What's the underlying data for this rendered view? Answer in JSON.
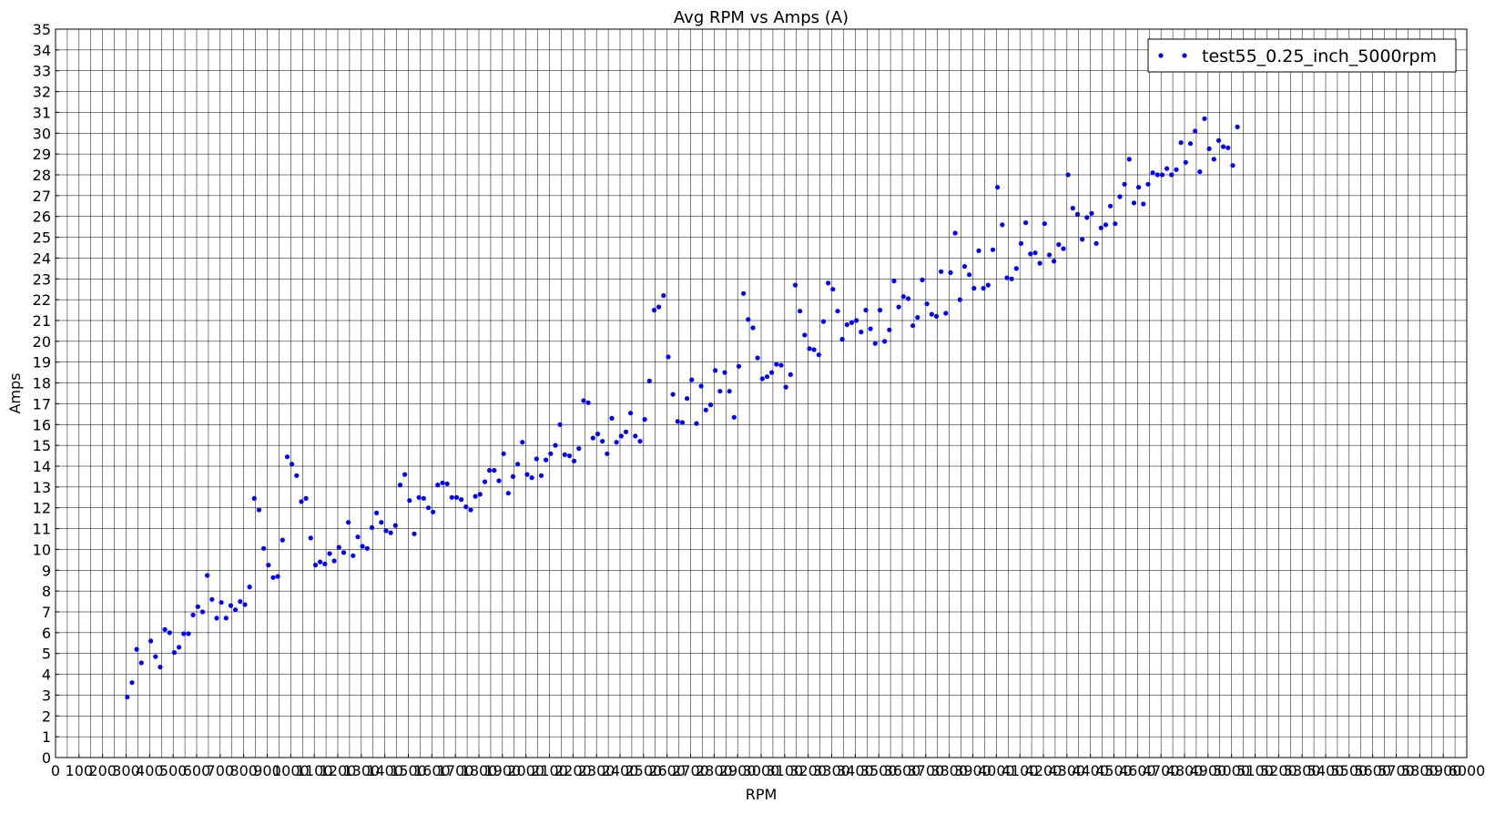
{
  "chart_data": {
    "type": "scatter",
    "title": "Avg RPM vs Amps (A)",
    "xlabel": "RPM",
    "ylabel": "Amps",
    "xlim": [
      0,
      6000
    ],
    "ylim": [
      0,
      35
    ],
    "x_ticks": [
      0,
      100,
      200,
      300,
      400,
      500,
      600,
      700,
      800,
      900,
      1000,
      1100,
      1200,
      1300,
      1400,
      1500,
      1600,
      1700,
      1800,
      1900,
      2000,
      2100,
      2200,
      2300,
      2400,
      2500,
      2600,
      2700,
      2800,
      2900,
      3000,
      3100,
      3200,
      3300,
      3400,
      3500,
      3600,
      3700,
      3800,
      3900,
      4000,
      4100,
      4200,
      4300,
      4400,
      4500,
      4600,
      4700,
      4800,
      4900,
      5000,
      5100,
      5200,
      5300,
      5400,
      5500,
      5600,
      5700,
      5800,
      5900,
      6000
    ],
    "y_ticks": [
      0,
      1,
      2,
      3,
      4,
      5,
      6,
      7,
      8,
      9,
      10,
      11,
      12,
      13,
      14,
      15,
      16,
      17,
      18,
      19,
      20,
      21,
      22,
      23,
      24,
      25,
      26,
      27,
      28,
      29,
      30,
      31,
      32,
      33,
      34,
      35
    ],
    "grid": true,
    "x_minor_step": 50,
    "legend": {
      "position": "top-right",
      "entries": [
        "test55_0.25_inch_5000rpm"
      ]
    },
    "marker_color": "#0000ff",
    "series": [
      {
        "name": "test55_0.25_inch_5000rpm",
        "points": [
          [
            305,
            2.9
          ],
          [
            325,
            3.6
          ],
          [
            345,
            5.2
          ],
          [
            365,
            4.55
          ],
          [
            405,
            5.6
          ],
          [
            425,
            4.85
          ],
          [
            445,
            4.35
          ],
          [
            465,
            6.15
          ],
          [
            485,
            6.0
          ],
          [
            505,
            5.05
          ],
          [
            525,
            5.3
          ],
          [
            545,
            5.95
          ],
          [
            565,
            5.95
          ],
          [
            585,
            6.85
          ],
          [
            605,
            7.25
          ],
          [
            625,
            7.0
          ],
          [
            645,
            8.75
          ],
          [
            665,
            7.6
          ],
          [
            685,
            6.7
          ],
          [
            705,
            7.45
          ],
          [
            725,
            6.7
          ],
          [
            745,
            7.3
          ],
          [
            765,
            7.1
          ],
          [
            785,
            7.5
          ],
          [
            805,
            7.35
          ],
          [
            825,
            8.2
          ],
          [
            845,
            12.45
          ],
          [
            865,
            11.9
          ],
          [
            885,
            10.05
          ],
          [
            905,
            9.25
          ],
          [
            925,
            8.65
          ],
          [
            945,
            8.7
          ],
          [
            965,
            10.45
          ],
          [
            985,
            14.45
          ],
          [
            1005,
            14.1
          ],
          [
            1025,
            13.55
          ],
          [
            1045,
            12.3
          ],
          [
            1065,
            12.45
          ],
          [
            1085,
            10.55
          ],
          [
            1105,
            9.25
          ],
          [
            1125,
            9.4
          ],
          [
            1145,
            9.3
          ],
          [
            1165,
            9.8
          ],
          [
            1185,
            9.45
          ],
          [
            1205,
            10.1
          ],
          [
            1225,
            9.85
          ],
          [
            1245,
            11.3
          ],
          [
            1265,
            9.7
          ],
          [
            1285,
            10.6
          ],
          [
            1305,
            10.15
          ],
          [
            1325,
            10.05
          ],
          [
            1345,
            11.05
          ],
          [
            1365,
            11.75
          ],
          [
            1385,
            11.3
          ],
          [
            1405,
            10.9
          ],
          [
            1425,
            10.8
          ],
          [
            1445,
            11.15
          ],
          [
            1465,
            13.1
          ],
          [
            1485,
            13.6
          ],
          [
            1505,
            12.35
          ],
          [
            1525,
            10.75
          ],
          [
            1545,
            12.5
          ],
          [
            1565,
            12.45
          ],
          [
            1585,
            12.0
          ],
          [
            1605,
            11.8
          ],
          [
            1625,
            13.1
          ],
          [
            1645,
            13.2
          ],
          [
            1665,
            13.15
          ],
          [
            1685,
            12.5
          ],
          [
            1705,
            12.5
          ],
          [
            1725,
            12.4
          ],
          [
            1745,
            12.05
          ],
          [
            1765,
            11.9
          ],
          [
            1785,
            12.55
          ],
          [
            1805,
            12.65
          ],
          [
            1825,
            13.25
          ],
          [
            1845,
            13.8
          ],
          [
            1865,
            13.8
          ],
          [
            1885,
            13.3
          ],
          [
            1905,
            14.6
          ],
          [
            1925,
            12.7
          ],
          [
            1945,
            13.5
          ],
          [
            1965,
            14.1
          ],
          [
            1985,
            15.15
          ],
          [
            2005,
            13.6
          ],
          [
            2025,
            13.45
          ],
          [
            2045,
            14.35
          ],
          [
            2065,
            13.55
          ],
          [
            2085,
            14.3
          ],
          [
            2105,
            14.6
          ],
          [
            2125,
            15.0
          ],
          [
            2145,
            16.0
          ],
          [
            2165,
            14.55
          ],
          [
            2185,
            14.5
          ],
          [
            2205,
            14.25
          ],
          [
            2225,
            14.85
          ],
          [
            2245,
            17.15
          ],
          [
            2265,
            17.05
          ],
          [
            2285,
            15.35
          ],
          [
            2305,
            15.55
          ],
          [
            2325,
            15.2
          ],
          [
            2345,
            14.6
          ],
          [
            2365,
            16.3
          ],
          [
            2385,
            15.15
          ],
          [
            2405,
            15.45
          ],
          [
            2425,
            15.65
          ],
          [
            2445,
            16.55
          ],
          [
            2465,
            15.45
          ],
          [
            2485,
            15.2
          ],
          [
            2505,
            16.25
          ],
          [
            2525,
            18.1
          ],
          [
            2545,
            21.5
          ],
          [
            2565,
            21.65
          ],
          [
            2585,
            22.2
          ],
          [
            2605,
            19.25
          ],
          [
            2625,
            17.45
          ],
          [
            2645,
            16.15
          ],
          [
            2665,
            16.1
          ],
          [
            2685,
            17.25
          ],
          [
            2705,
            18.15
          ],
          [
            2725,
            16.05
          ],
          [
            2745,
            17.85
          ],
          [
            2765,
            16.7
          ],
          [
            2785,
            16.95
          ],
          [
            2805,
            18.6
          ],
          [
            2825,
            17.6
          ],
          [
            2845,
            18.5
          ],
          [
            2865,
            17.6
          ],
          [
            2885,
            16.35
          ],
          [
            2905,
            18.8
          ],
          [
            2925,
            22.3
          ],
          [
            2945,
            21.05
          ],
          [
            2965,
            20.65
          ],
          [
            2985,
            19.2
          ],
          [
            3005,
            18.2
          ],
          [
            3025,
            18.3
          ],
          [
            3045,
            18.5
          ],
          [
            3065,
            18.9
          ],
          [
            3085,
            18.85
          ],
          [
            3105,
            17.8
          ],
          [
            3125,
            18.4
          ],
          [
            3145,
            22.7
          ],
          [
            3165,
            21.45
          ],
          [
            3185,
            20.3
          ],
          [
            3205,
            19.65
          ],
          [
            3225,
            19.6
          ],
          [
            3245,
            19.35
          ],
          [
            3265,
            20.95
          ],
          [
            3285,
            22.8
          ],
          [
            3305,
            22.5
          ],
          [
            3325,
            21.45
          ],
          [
            3345,
            20.1
          ],
          [
            3365,
            20.8
          ],
          [
            3385,
            20.9
          ],
          [
            3405,
            21.0
          ],
          [
            3425,
            20.45
          ],
          [
            3445,
            21.5
          ],
          [
            3465,
            20.6
          ],
          [
            3485,
            19.9
          ],
          [
            3505,
            21.5
          ],
          [
            3525,
            20.0
          ],
          [
            3545,
            20.55
          ],
          [
            3565,
            22.9
          ],
          [
            3585,
            21.65
          ],
          [
            3605,
            22.15
          ],
          [
            3625,
            22.05
          ],
          [
            3645,
            20.75
          ],
          [
            3665,
            21.15
          ],
          [
            3685,
            22.95
          ],
          [
            3705,
            21.8
          ],
          [
            3725,
            21.3
          ],
          [
            3745,
            21.2
          ],
          [
            3765,
            23.35
          ],
          [
            3785,
            21.35
          ],
          [
            3805,
            23.3
          ],
          [
            3825,
            25.2
          ],
          [
            3845,
            22.0
          ],
          [
            3865,
            23.6
          ],
          [
            3885,
            23.2
          ],
          [
            3905,
            22.55
          ],
          [
            3925,
            24.35
          ],
          [
            3945,
            22.55
          ],
          [
            3965,
            22.7
          ],
          [
            3985,
            24.4
          ],
          [
            4005,
            27.4
          ],
          [
            4025,
            25.6
          ],
          [
            4045,
            23.05
          ],
          [
            4065,
            23.0
          ],
          [
            4085,
            23.5
          ],
          [
            4105,
            24.7
          ],
          [
            4125,
            25.7
          ],
          [
            4145,
            24.2
          ],
          [
            4165,
            24.25
          ],
          [
            4185,
            23.75
          ],
          [
            4205,
            25.65
          ],
          [
            4225,
            24.15
          ],
          [
            4245,
            23.85
          ],
          [
            4265,
            24.65
          ],
          [
            4285,
            24.45
          ],
          [
            4305,
            28.0
          ],
          [
            4325,
            26.4
          ],
          [
            4345,
            26.1
          ],
          [
            4365,
            24.9
          ],
          [
            4385,
            25.95
          ],
          [
            4405,
            26.15
          ],
          [
            4425,
            24.7
          ],
          [
            4445,
            25.45
          ],
          [
            4465,
            25.6
          ],
          [
            4485,
            26.5
          ],
          [
            4505,
            25.65
          ],
          [
            4525,
            26.95
          ],
          [
            4545,
            27.55
          ],
          [
            4565,
            28.75
          ],
          [
            4585,
            26.65
          ],
          [
            4605,
            27.4
          ],
          [
            4625,
            26.6
          ],
          [
            4645,
            27.55
          ],
          [
            4665,
            28.1
          ],
          [
            4685,
            28.0
          ],
          [
            4705,
            28.0
          ],
          [
            4725,
            28.3
          ],
          [
            4745,
            28.0
          ],
          [
            4765,
            28.25
          ],
          [
            4785,
            29.55
          ],
          [
            4805,
            28.6
          ],
          [
            4825,
            29.5
          ],
          [
            4845,
            30.1
          ],
          [
            4865,
            28.15
          ],
          [
            4885,
            30.7
          ],
          [
            4905,
            29.25
          ],
          [
            4925,
            28.75
          ],
          [
            4945,
            29.65
          ],
          [
            4965,
            29.35
          ],
          [
            4985,
            29.3
          ],
          [
            5005,
            28.45
          ],
          [
            5025,
            30.3
          ]
        ]
      }
    ]
  }
}
